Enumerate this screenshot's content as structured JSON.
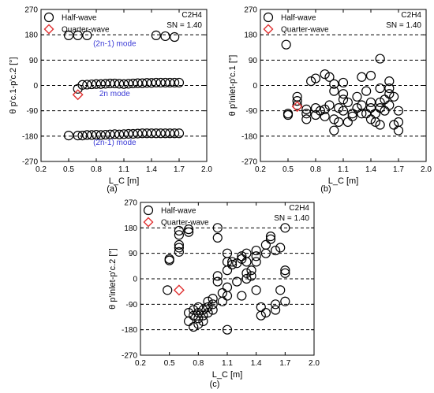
{
  "chart_data": [
    {
      "type": "scatter",
      "panel_label": "(a)",
      "xlabel": "L_C [m]",
      "ylabel": "θ p'c.1-p'c.2 [°]",
      "xlim": [
        0.2,
        2.0
      ],
      "ylim": [
        -270,
        270
      ],
      "xticks": [
        0.2,
        0.5,
        0.8,
        1.1,
        1.4,
        1.7,
        2.0
      ],
      "yticks": [
        -270,
        -180,
        -90,
        0,
        90,
        180,
        270
      ],
      "dashed_lines": [
        -180,
        -90,
        0,
        90,
        180
      ],
      "legend": [
        "Half-wave",
        "Quarter-wave"
      ],
      "annotation": {
        "line1": "C2H4",
        "line2": "SN = 1.40"
      },
      "mode_labels": [
        {
          "text": "(2n-1) mode",
          "x": 1.0,
          "y": 150
        },
        {
          "text": "2n mode",
          "x": 1.0,
          "y": -28
        },
        {
          "text": "(2n-1) mode",
          "x": 1.0,
          "y": -202
        }
      ],
      "series": [
        {
          "name": "Half-wave",
          "marker": "circle",
          "x": [
            0.5,
            0.6,
            0.7,
            1.45,
            1.55,
            1.65,
            0.6,
            0.65,
            0.7,
            0.75,
            0.8,
            0.85,
            0.9,
            0.95,
            1.0,
            1.05,
            1.1,
            1.15,
            1.2,
            1.25,
            1.3,
            1.35,
            1.4,
            1.45,
            1.5,
            1.55,
            1.6,
            1.65,
            1.7,
            0.5,
            0.6,
            0.65,
            0.7,
            0.75,
            0.8,
            0.85,
            0.9,
            0.95,
            1.0,
            1.05,
            1.1,
            1.15,
            1.2,
            1.25,
            1.3,
            1.35,
            1.4,
            1.45,
            1.5,
            1.55,
            1.6,
            1.65,
            1.7
          ],
          "y": [
            178,
            178,
            178,
            178,
            175,
            172,
            -12,
            2,
            3,
            4,
            5,
            5,
            6,
            7,
            7,
            6,
            5,
            6,
            7,
            8,
            8,
            9,
            9,
            10,
            10,
            10,
            10,
            10,
            10,
            -178,
            -178,
            -178,
            -176,
            -176,
            -175,
            -176,
            -175,
            -174,
            -173,
            -174,
            -173,
            -172,
            -172,
            -171,
            -170,
            -170,
            -170,
            -170,
            -170,
            -170,
            -170,
            -170,
            -170
          ]
        },
        {
          "name": "Quarter-wave",
          "marker": "diamond",
          "x": [
            0.6
          ],
          "y": [
            -33
          ]
        }
      ]
    },
    {
      "type": "scatter",
      "panel_label": "(b)",
      "xlabel": "L_C [m]",
      "ylabel": "θ p'inlet-p'c.1 [°]",
      "xlim": [
        0.2,
        2.0
      ],
      "ylim": [
        -270,
        270
      ],
      "xticks": [
        0.2,
        0.5,
        0.8,
        1.1,
        1.4,
        1.7,
        2.0
      ],
      "yticks": [
        -270,
        -180,
        -90,
        0,
        90,
        180,
        270
      ],
      "dashed_lines": [
        -180,
        -90,
        0,
        90,
        180
      ],
      "legend": [
        "Half-wave",
        "Quarter-wave"
      ],
      "annotation": {
        "line1": "C2H4",
        "line2": "SN = 1.40"
      },
      "mode_labels": [],
      "series": [
        {
          "name": "Half-wave",
          "marker": "circle",
          "x": [
            0.48,
            0.5,
            0.5,
            0.6,
            0.6,
            0.6,
            0.7,
            0.7,
            0.7,
            0.75,
            0.8,
            0.8,
            0.8,
            0.85,
            0.9,
            0.9,
            0.9,
            0.95,
            0.95,
            1.0,
            1.0,
            1.0,
            1.0,
            1.05,
            1.05,
            1.1,
            1.1,
            1.1,
            1.1,
            1.15,
            1.15,
            1.2,
            1.2,
            1.25,
            1.25,
            1.3,
            1.3,
            1.3,
            1.35,
            1.35,
            1.4,
            1.4,
            1.4,
            1.4,
            1.45,
            1.45,
            1.5,
            1.5,
            1.5,
            1.5,
            1.5,
            1.55,
            1.55,
            1.6,
            1.6,
            1.6,
            1.6,
            1.65,
            1.65,
            1.7,
            1.7,
            1.7
          ],
          "y": [
            145,
            -105,
            -100,
            -40,
            -55,
            -70,
            -100,
            -120,
            -85,
            15,
            -105,
            25,
            -80,
            -90,
            -110,
            -85,
            40,
            -70,
            30,
            -160,
            -120,
            5,
            -20,
            -80,
            -130,
            -50,
            -90,
            -30,
            10,
            -60,
            -130,
            -110,
            -100,
            -80,
            -40,
            -100,
            -70,
            30,
            -20,
            -100,
            35,
            -80,
            -60,
            -120,
            -100,
            -130,
            -60,
            -80,
            -140,
            -10,
            95,
            -90,
            -50,
            -30,
            -70,
            -10,
            15,
            -40,
            -140,
            -90,
            -130,
            -160
          ]
        },
        {
          "name": "Quarter-wave",
          "marker": "diamond",
          "x": [
            0.6
          ],
          "y": [
            -75
          ]
        }
      ]
    },
    {
      "type": "scatter",
      "panel_label": "(c)",
      "xlabel": "L_C [m]",
      "ylabel": "θ p'inlet-p'c.2 [°]",
      "xlim": [
        0.2,
        2.0
      ],
      "ylim": [
        -270,
        270
      ],
      "xticks": [
        0.2,
        0.5,
        0.8,
        1.1,
        1.4,
        1.7,
        2.0
      ],
      "yticks": [
        -270,
        -180,
        -90,
        0,
        90,
        180,
        270
      ],
      "dashed_lines": [
        -180,
        -90,
        0,
        90,
        180
      ],
      "legend": [
        "Half-wave",
        "Quarter-wave"
      ],
      "annotation": {
        "line1": "C2H4",
        "line2": "SN = 1.40"
      },
      "mode_labels": [],
      "series": [
        {
          "name": "Half-wave",
          "marker": "circle",
          "x": [
            0.48,
            0.5,
            0.5,
            0.6,
            0.6,
            0.6,
            0.6,
            0.6,
            0.7,
            0.7,
            0.7,
            0.7,
            0.75,
            0.75,
            0.75,
            0.8,
            0.8,
            0.8,
            0.8,
            0.85,
            0.85,
            0.85,
            0.9,
            0.9,
            0.9,
            0.95,
            0.95,
            0.95,
            1.0,
            1.0,
            1.0,
            1.0,
            1.05,
            1.05,
            1.1,
            1.1,
            1.1,
            1.1,
            1.1,
            1.1,
            1.15,
            1.15,
            1.2,
            1.2,
            1.25,
            1.25,
            1.25,
            1.3,
            1.3,
            1.3,
            1.3,
            1.35,
            1.35,
            1.4,
            1.4,
            1.4,
            1.4,
            1.45,
            1.45,
            1.5,
            1.5,
            1.5,
            1.55,
            1.55,
            1.6,
            1.6,
            1.6,
            1.65,
            1.65,
            1.7,
            1.7,
            1.7,
            1.7
          ],
          "y": [
            -40,
            65,
            70,
            170,
            155,
            120,
            110,
            95,
            175,
            165,
            -120,
            -150,
            -170,
            -130,
            -110,
            -160,
            -140,
            -120,
            -100,
            -150,
            -130,
            -110,
            -120,
            -100,
            -80,
            -110,
            -90,
            -70,
            180,
            145,
            10,
            -10,
            -50,
            -80,
            90,
            60,
            30,
            -30,
            -60,
            -180,
            60,
            50,
            55,
            -10,
            70,
            80,
            -60,
            90,
            60,
            20,
            0,
            10,
            30,
            100,
            80,
            60,
            -40,
            -130,
            -100,
            120,
            90,
            -120,
            150,
            140,
            -90,
            -110,
            100,
            110,
            -40,
            180,
            30,
            -80,
            20
          ]
        },
        {
          "name": "Quarter-wave",
          "marker": "diamond",
          "x": [
            0.6
          ],
          "y": [
            -40
          ]
        }
      ]
    }
  ]
}
